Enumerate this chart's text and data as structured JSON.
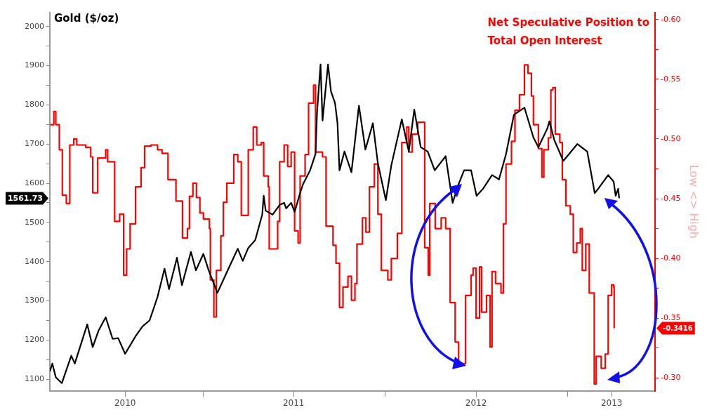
{
  "chart_data": {
    "type": "line",
    "y2label": "Low <> High",
    "annotations": [
      "1561.73",
      "-0.3416"
    ],
    "xlim": [
      "2010-02-27",
      "2013-06-25"
    ],
    "xticks": [
      {
        "value": "2010-07-28",
        "label": "2010"
      },
      {
        "value": "2011-01-01",
        "label": null
      },
      {
        "value": "2011-07-01",
        "label": "2011"
      },
      {
        "value": "2012-01-01",
        "label": null
      },
      {
        "value": "2012-07-01",
        "label": "2012"
      },
      {
        "value": "2013-01-01",
        "label": null
      },
      {
        "value": "2013-03-30",
        "label": "2013"
      }
    ],
    "ylim": [
      1070,
      2036
    ],
    "yticks": [
      1100,
      {
        "value": 1150,
        "label": null
      },
      1200,
      {
        "value": 1250,
        "label": null
      },
      1300,
      {
        "value": 1350,
        "label": null
      },
      1400,
      {
        "value": 1450,
        "label": null
      },
      1500,
      {
        "value": 1550,
        "label": null
      },
      1600,
      {
        "value": 1650,
        "label": null
      },
      1700,
      {
        "value": 1750,
        "label": null
      },
      1800,
      {
        "value": 1850,
        "label": null
      },
      1900,
      {
        "value": 1950,
        "label": null
      },
      2000
    ],
    "y2lim": [
      -0.289,
      -0.606
    ],
    "y2ticks": [
      {
        "value": -0.6,
        "label": "-0.60"
      },
      {
        "value": -0.575,
        "label": null
      },
      {
        "value": -0.55,
        "label": "-0.55"
      },
      {
        "value": -0.525,
        "label": null
      },
      {
        "value": -0.5,
        "label": "-0.50"
      },
      {
        "value": -0.475,
        "label": null
      },
      {
        "value": -0.45,
        "label": "-0.45"
      },
      {
        "value": -0.425,
        "label": null
      },
      {
        "value": -0.4,
        "label": "-0.40"
      },
      {
        "value": -0.375,
        "label": null
      },
      {
        "value": -0.35,
        "label": "-0.35"
      },
      {
        "value": -0.325,
        "label": null
      },
      {
        "value": -0.3,
        "label": "-0.30"
      }
    ],
    "series": [
      {
        "name": "Gold ($/oz)",
        "type": "line",
        "color": "#000000",
        "x": [
          "2010-02-27",
          "2010-03-04",
          "2010-03-11",
          "2010-03-23",
          "2010-04-11",
          "2010-04-18",
          "2010-05-13",
          "2010-05-24",
          "2010-06-05",
          "2010-06-19",
          "2010-07-03",
          "2010-07-14",
          "2010-07-28",
          "2010-08-18",
          "2010-09-01",
          "2010-09-15",
          "2010-10-01",
          "2010-10-15",
          "2010-10-24",
          "2010-11-09",
          "2010-11-19",
          "2010-12-07",
          "2010-12-17",
          "2011-01-01",
          "2011-01-11",
          "2011-01-29",
          "2011-02-08",
          "2011-02-25",
          "2011-03-11",
          "2011-03-21",
          "2011-04-01",
          "2011-04-15",
          "2011-04-29",
          "2011-05-02",
          "2011-05-06",
          "2011-05-20",
          "2011-06-03",
          "2011-06-12",
          "2011-06-16",
          "2011-06-26",
          "2011-07-03",
          "2011-07-14",
          "2011-07-20",
          "2011-08-03",
          "2011-08-14",
          "2011-08-17",
          "2011-08-24",
          "2011-08-28",
          "2011-09-08",
          "2011-09-14",
          "2011-09-22",
          "2011-09-27",
          "2011-10-01",
          "2011-10-11",
          "2011-10-25",
          "2011-11-09",
          "2011-11-22",
          "2011-12-07",
          "2011-12-17",
          "2012-01-02",
          "2012-01-13",
          "2012-02-03",
          "2012-02-17",
          "2012-02-28",
          "2012-03-12",
          "2012-03-26",
          "2012-04-09",
          "2012-05-01",
          "2012-05-15",
          "2012-05-27",
          "2012-06-07",
          "2012-06-21",
          "2012-07-02",
          "2012-07-15",
          "2012-08-02",
          "2012-08-16",
          "2012-08-30",
          "2012-09-15",
          "2012-10-06",
          "2012-10-24",
          "2012-11-03",
          "2012-11-21",
          "2012-11-25",
          "2012-12-05",
          "2012-12-23",
          "2013-01-20",
          "2013-02-09",
          "2013-02-24",
          "2013-03-03",
          "2013-03-23",
          "2013-04-03",
          "2013-04-07",
          "2013-04-12",
          "2013-04-14"
        ],
        "values": [
          1120,
          1140,
          1105,
          1090,
          1160,
          1140,
          1240,
          1182,
          1225,
          1258,
          1203,
          1205,
          1165,
          1210,
          1235,
          1250,
          1310,
          1382,
          1330,
          1410,
          1340,
          1425,
          1378,
          1420,
          1380,
          1320,
          1348,
          1395,
          1433,
          1402,
          1435,
          1455,
          1520,
          1568,
          1530,
          1520,
          1545,
          1550,
          1536,
          1550,
          1527,
          1575,
          1598,
          1633,
          1675,
          1781,
          1903,
          1760,
          1903,
          1834,
          1805,
          1753,
          1633,
          1681,
          1628,
          1798,
          1686,
          1753,
          1651,
          1557,
          1646,
          1763,
          1681,
          1788,
          1692,
          1681,
          1633,
          1669,
          1550,
          1598,
          1633,
          1633,
          1568,
          1586,
          1621,
          1610,
          1674,
          1775,
          1793,
          1717,
          1692,
          1740,
          1758,
          1710,
          1657,
          1700,
          1681,
          1575,
          1586,
          1621,
          1604,
          1568,
          1586,
          1561.73
        ]
      },
      {
        "name": "Net Speculative Position to Total Open Interest",
        "type": "step",
        "axis": "y2",
        "color": "#ff0000",
        "x": [
          "2010-02-28",
          "2010-03-07",
          "2010-03-11",
          "2010-03-18",
          "2010-03-24",
          "2010-04-01",
          "2010-04-08",
          "2010-04-16",
          "2010-04-22",
          "2010-05-10",
          "2010-05-20",
          "2010-05-24",
          "2010-06-03",
          "2010-06-19",
          "2010-06-23",
          "2010-07-07",
          "2010-07-17",
          "2010-07-25",
          "2010-07-31",
          "2010-08-07",
          "2010-08-18",
          "2010-08-29",
          "2010-09-05",
          "2010-09-18",
          "2010-10-01",
          "2010-10-10",
          "2010-10-22",
          "2010-11-07",
          "2010-11-20",
          "2010-11-30",
          "2010-12-04",
          "2010-12-11",
          "2010-12-18",
          "2010-12-25",
          "2011-01-01",
          "2011-01-13",
          "2011-01-15",
          "2011-01-22",
          "2011-01-27",
          "2011-02-05",
          "2011-02-10",
          "2011-02-17",
          "2011-03-03",
          "2011-03-11",
          "2011-03-18",
          "2011-04-01",
          "2011-04-11",
          "2011-04-18",
          "2011-04-27",
          "2011-05-02",
          "2011-05-11",
          "2011-05-13",
          "2011-05-20",
          "2011-05-30",
          "2011-06-03",
          "2011-06-12",
          "2011-06-19",
          "2011-06-26",
          "2011-07-03",
          "2011-07-10",
          "2011-07-14",
          "2011-07-24",
          "2011-07-31",
          "2011-08-10",
          "2011-08-14",
          "2011-08-28",
          "2011-09-04",
          "2011-09-18",
          "2011-09-24",
          "2011-10-01",
          "2011-10-08",
          "2011-10-18",
          "2011-10-25",
          "2011-11-01",
          "2011-11-05",
          "2011-11-16",
          "2011-11-23",
          "2011-11-30",
          "2011-12-10",
          "2011-12-17",
          "2011-12-24",
          "2012-01-06",
          "2012-01-13",
          "2012-01-25",
          "2012-02-03",
          "2012-02-13",
          "2012-02-17",
          "2012-02-24",
          "2012-03-06",
          "2012-03-20",
          "2012-03-27",
          "2012-03-30",
          "2012-04-10",
          "2012-04-22",
          "2012-05-01",
          "2012-05-10",
          "2012-05-20",
          "2012-05-27",
          "2012-06-07",
          "2012-06-10",
          "2012-06-21",
          "2012-06-25",
          "2012-07-01",
          "2012-07-08",
          "2012-07-12",
          "2012-07-22",
          "2012-07-29",
          "2012-08-02",
          "2012-08-09",
          "2012-08-20",
          "2012-08-25",
          "2012-08-30",
          "2012-09-10",
          "2012-09-17",
          "2012-09-26",
          "2012-10-06",
          "2012-10-13",
          "2012-10-20",
          "2012-10-24",
          "2012-11-03",
          "2012-11-10",
          "2012-11-14",
          "2012-11-23",
          "2012-11-28",
          "2012-12-02",
          "2012-12-07",
          "2012-12-16",
          "2012-12-21",
          "2012-12-28",
          "2013-01-06",
          "2013-01-12",
          "2013-01-19",
          "2013-01-26",
          "2013-01-30",
          "2013-02-06",
          "2013-02-13",
          "2013-02-20",
          "2013-02-23",
          "2013-02-27",
          "2013-03-09",
          "2013-03-17",
          "2013-03-23",
          "2013-03-30",
          "2013-04-03",
          "2013-04-04"
        ],
        "values": [
          -0.512,
          -0.523,
          -0.512,
          -0.491,
          -0.453,
          -0.446,
          -0.495,
          -0.5,
          -0.495,
          -0.493,
          -0.485,
          -0.455,
          -0.484,
          -0.491,
          -0.481,
          -0.431,
          -0.437,
          -0.386,
          -0.408,
          -0.429,
          -0.46,
          -0.476,
          -0.494,
          -0.495,
          -0.491,
          -0.488,
          -0.466,
          -0.448,
          -0.417,
          -0.425,
          -0.452,
          -0.463,
          -0.451,
          -0.438,
          -0.433,
          -0.425,
          -0.382,
          -0.351,
          -0.39,
          -0.419,
          -0.447,
          -0.463,
          -0.487,
          -0.481,
          -0.436,
          -0.491,
          -0.51,
          -0.495,
          -0.497,
          -0.469,
          -0.46,
          -0.408,
          -0.408,
          -0.431,
          -0.481,
          -0.495,
          -0.477,
          -0.489,
          -0.423,
          -0.413,
          -0.469,
          -0.487,
          -0.53,
          -0.545,
          -0.489,
          -0.485,
          -0.427,
          -0.411,
          -0.396,
          -0.359,
          -0.376,
          -0.385,
          -0.365,
          -0.379,
          -0.412,
          -0.434,
          -0.422,
          -0.46,
          -0.479,
          -0.437,
          -0.39,
          -0.382,
          -0.4,
          -0.421,
          -0.497,
          -0.51,
          -0.489,
          -0.504,
          -0.514,
          -0.409,
          -0.386,
          -0.446,
          -0.425,
          -0.434,
          -0.425,
          -0.363,
          -0.33,
          -0.312,
          -0.312,
          -0.369,
          -0.386,
          -0.392,
          -0.35,
          -0.393,
          -0.355,
          -0.369,
          -0.326,
          -0.389,
          -0.379,
          -0.371,
          -0.429,
          -0.479,
          -0.498,
          -0.524,
          -0.537,
          -0.562,
          -0.555,
          -0.536,
          -0.512,
          -0.492,
          -0.468,
          -0.491,
          -0.501,
          -0.541,
          -0.543,
          -0.504,
          -0.497,
          -0.466,
          -0.444,
          -0.437,
          -0.405,
          -0.413,
          -0.425,
          -0.39,
          -0.412,
          -0.371,
          -0.371,
          -0.295,
          -0.318,
          -0.308,
          -0.32,
          -0.369,
          -0.378,
          -0.376,
          -0.3416
        ]
      }
    ]
  }
}
